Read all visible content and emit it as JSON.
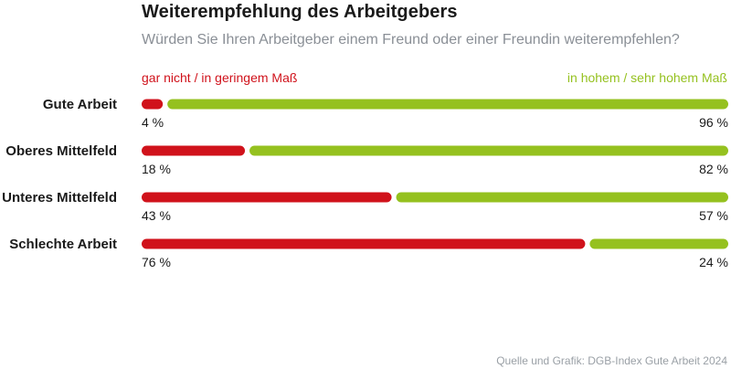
{
  "header": {
    "title": "Weiterempfehlung des Arbeitgebers",
    "subtitle": "Würden Sie Ihren Arbeitgeber einem Freund oder einer Freundin weiterempfehlen?"
  },
  "footer": {
    "source": "Quelle und Grafik: DGB-Index Gute Arbeit 2024"
  },
  "colors": {
    "negative": "#d0121b",
    "positive": "#95c11f"
  },
  "chart_data": {
    "type": "bar",
    "stacked": true,
    "orientation": "horizontal",
    "title": "Weiterempfehlung des Arbeitgebers",
    "subtitle": "Würden Sie Ihren Arbeitgeber einem Freund oder einer Freundin weiterempfehlen?",
    "categories": [
      "Gute Arbeit",
      "Oberes Mittelfeld",
      "Unteres Mittelfeld",
      "Schlechte Arbeit"
    ],
    "series": [
      {
        "name": "gar nicht / in geringem Maß",
        "values": [
          4,
          18,
          43,
          76
        ],
        "labels": [
          "4 %",
          "18 %",
          "43 %",
          "76 %"
        ]
      },
      {
        "name": "in hohem / sehr hohem Maß",
        "values": [
          96,
          82,
          57,
          24
        ],
        "labels": [
          "96 %",
          "82 %",
          "57 %",
          "24 %"
        ]
      }
    ],
    "xlim": [
      0,
      100
    ],
    "unit": "%",
    "grid": false,
    "legend": "top"
  }
}
